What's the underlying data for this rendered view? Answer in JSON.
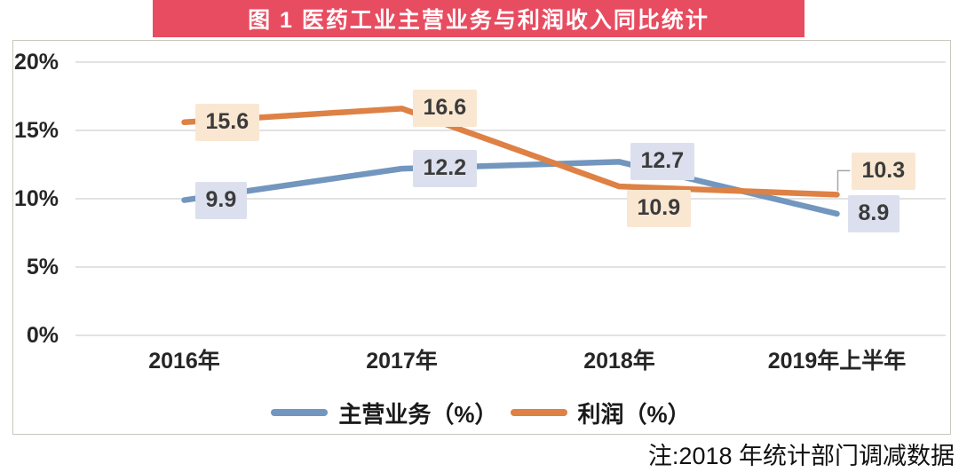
{
  "banner": {
    "title": "图 1  医药工业主营业务与利润收入同比统计",
    "bg_color": "#E84C60",
    "text_color": "#FFFFFF"
  },
  "chart_data": {
    "type": "line",
    "title": "医药工业主营业务与利润收入同比统计",
    "categories": [
      "2016年",
      "2017年",
      "2018年",
      "2019年上半年"
    ],
    "series": [
      {
        "name": "主营业务（%）",
        "values": [
          9.9,
          12.2,
          12.7,
          8.9
        ],
        "color": "#7296BE",
        "label_bg": "#DCE0EE"
      },
      {
        "name": "利润（%）",
        "values": [
          15.6,
          16.6,
          10.9,
          10.3
        ],
        "color": "#DE8144",
        "label_bg": "#FAE7D1"
      }
    ],
    "ylim": [
      0,
      20
    ],
    "yticks": [
      "20%",
      "15%",
      "10%",
      "5%",
      "0%"
    ],
    "grid": true,
    "legend_position": "bottom",
    "gridline_color": "#D9D9D9",
    "leader_line_color": "#A6A6A6",
    "axis_text_color": "#262626",
    "label_text_color": "#3B3B3B"
  },
  "note": {
    "text": "注:2018 年统计部门调减数据"
  }
}
